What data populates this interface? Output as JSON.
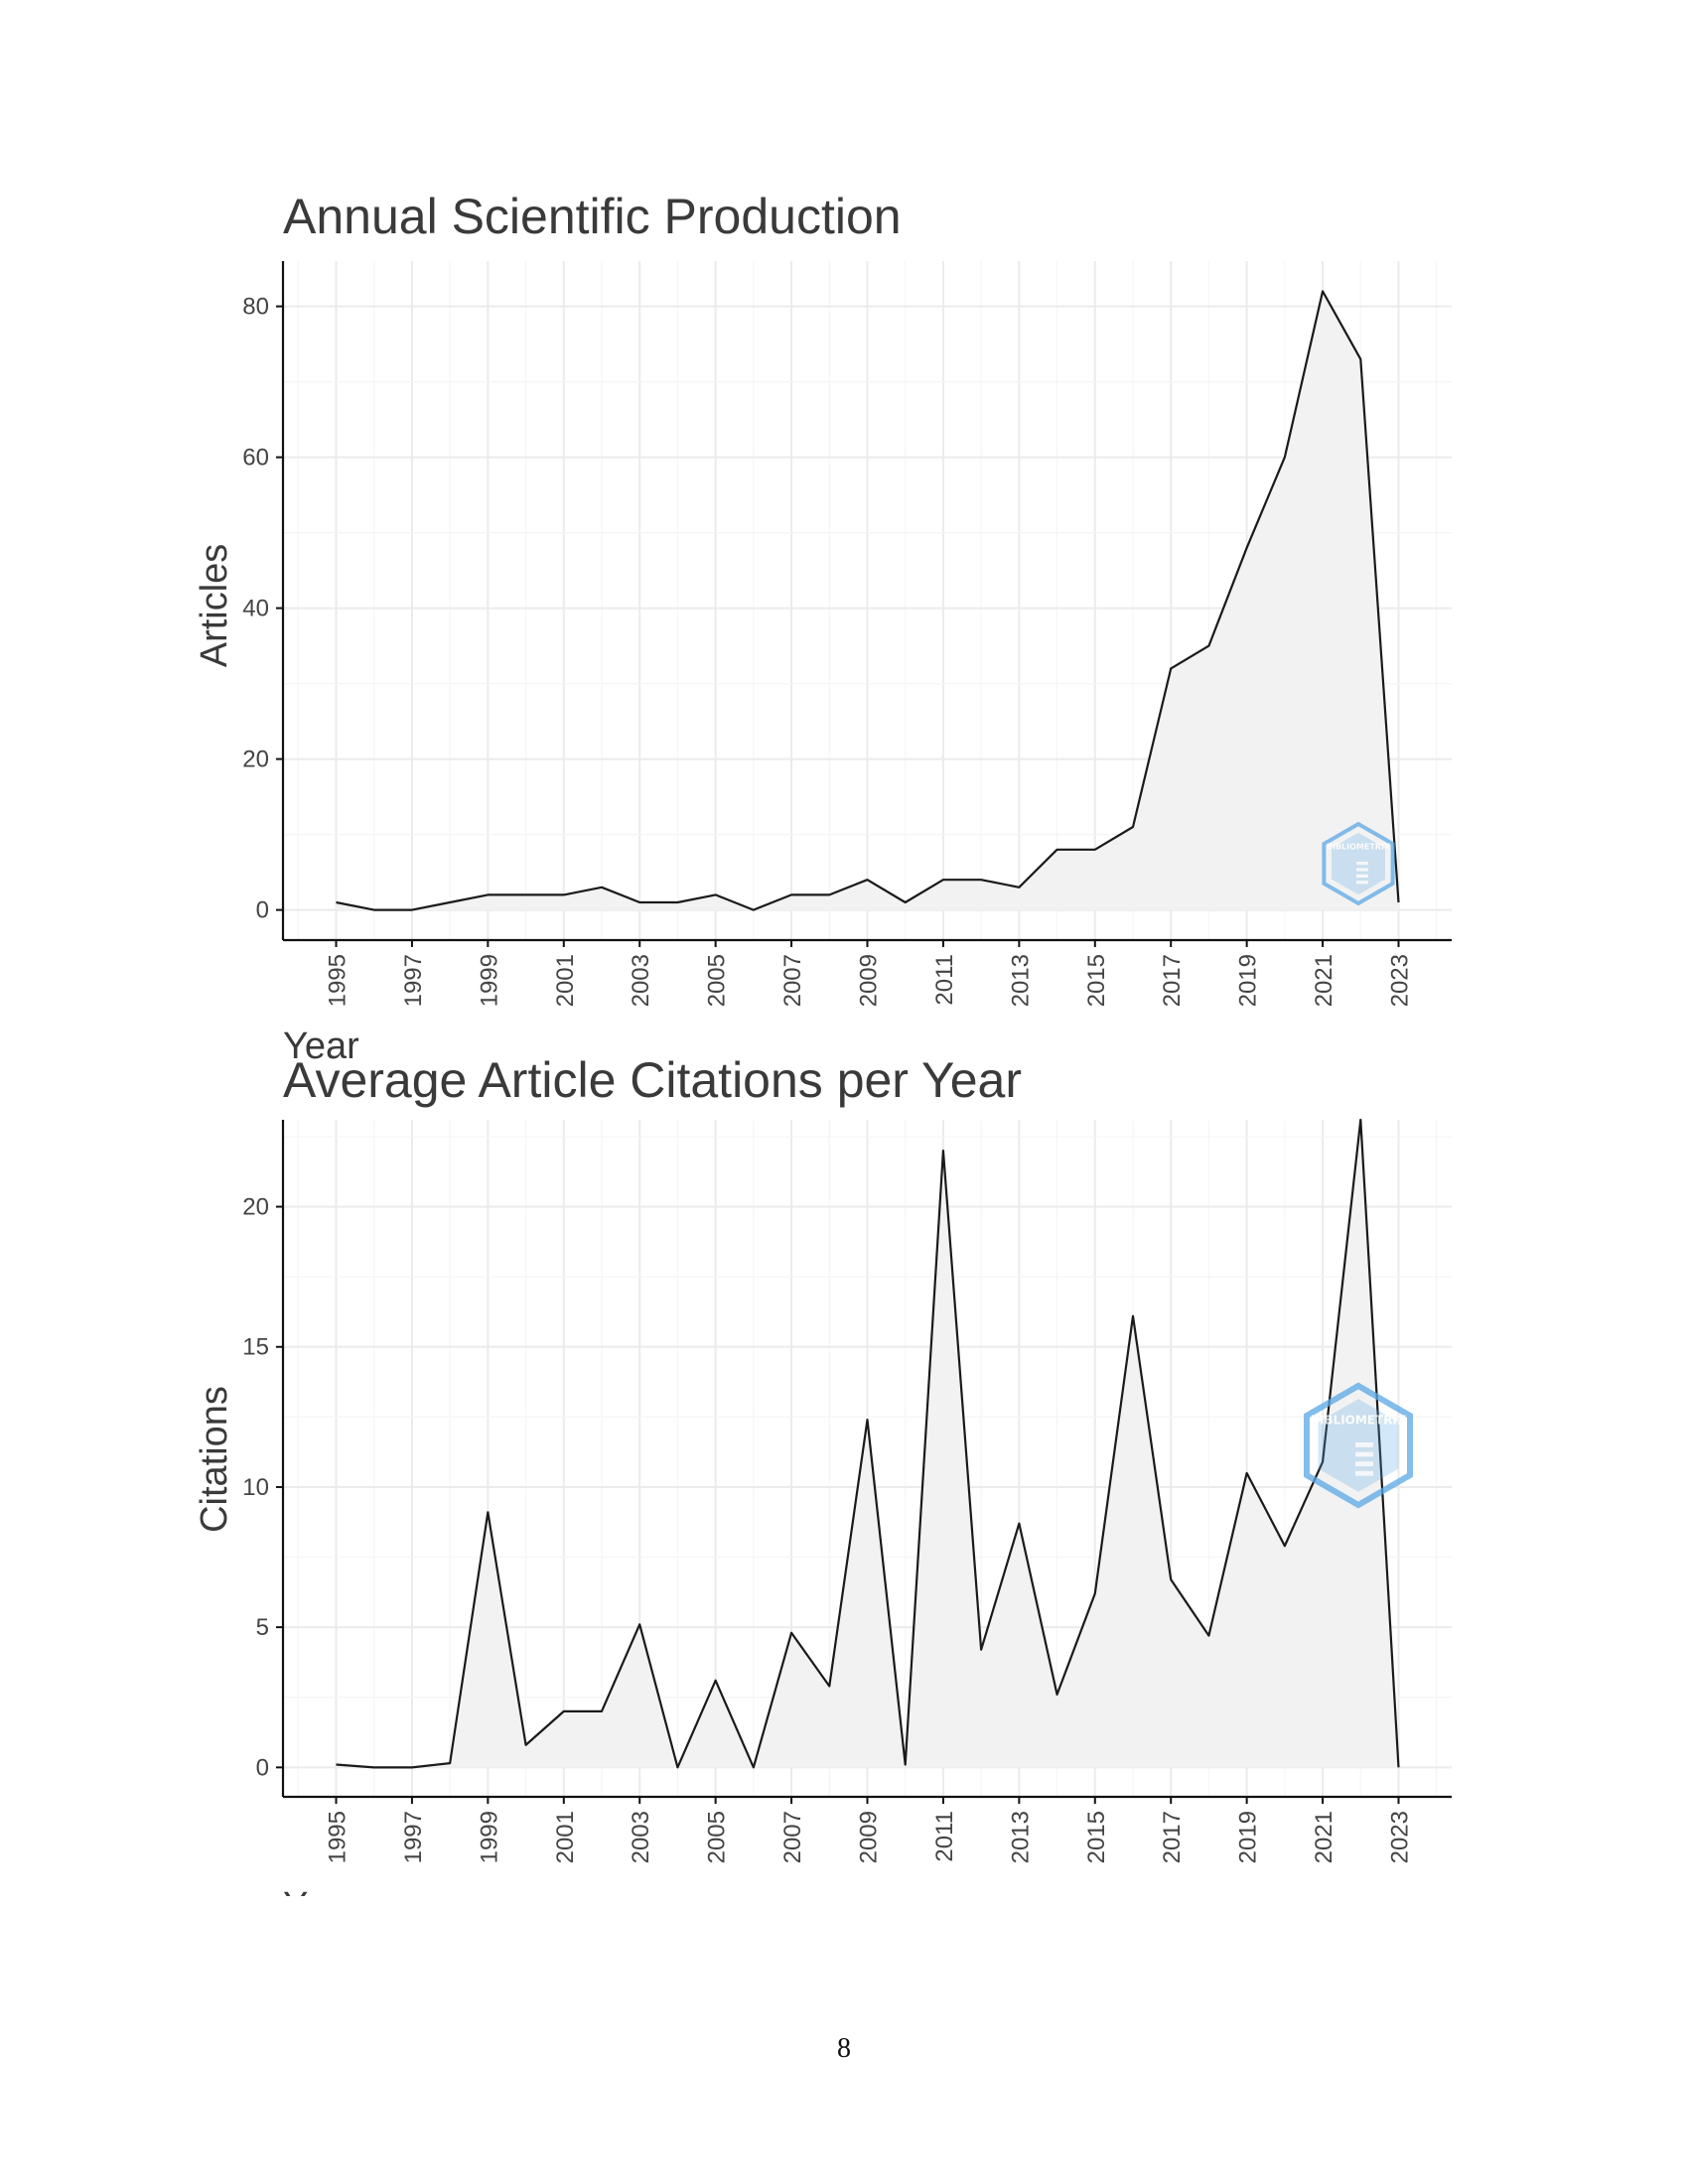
{
  "page": {
    "number": "8"
  },
  "colors": {
    "line": "#1a1a1a",
    "fill": "#f2f2f2",
    "grid_major": "#ebebeb",
    "grid_minor": "#f5f5f5",
    "axis": "#111111",
    "watermark": "#5aa8e6"
  },
  "watermark": {
    "text": "BIBLIOMETRIX",
    "icon": "bibliometrix-hexagon-logo"
  },
  "chart_data": [
    {
      "type": "area",
      "title": "Annual Scientific Production",
      "xlabel": "Year",
      "ylabel": "Articles",
      "x": [
        1995,
        1996,
        1997,
        1998,
        1999,
        2000,
        2001,
        2002,
        2003,
        2004,
        2005,
        2006,
        2007,
        2008,
        2009,
        2010,
        2011,
        2012,
        2013,
        2014,
        2015,
        2016,
        2017,
        2018,
        2019,
        2020,
        2021,
        2022,
        2023
      ],
      "values": [
        1,
        0,
        0,
        1,
        2,
        2,
        2,
        3,
        1,
        1,
        2,
        0,
        2,
        2,
        4,
        1,
        4,
        4,
        3,
        8,
        8,
        11,
        32,
        35,
        48,
        60,
        82,
        73,
        1
      ],
      "xticks": [
        "1995",
        "1997",
        "1999",
        "2001",
        "2003",
        "2005",
        "2007",
        "2009",
        "2011",
        "2013",
        "2015",
        "2017",
        "2019",
        "2021",
        "2023"
      ],
      "yticks": [
        "0",
        "20",
        "40",
        "60",
        "80"
      ],
      "xlim": [
        1993.6,
        2024.4
      ],
      "ylim": [
        -4,
        86
      ],
      "grid": true,
      "legend": "none"
    },
    {
      "type": "area",
      "title": "Average Article Citations per Year",
      "xlabel": "Year",
      "ylabel": "Citations",
      "x": [
        1995,
        1996,
        1997,
        1998,
        1999,
        2000,
        2001,
        2002,
        2003,
        2004,
        2005,
        2006,
        2007,
        2008,
        2009,
        2010,
        2011,
        2012,
        2013,
        2014,
        2015,
        2016,
        2017,
        2018,
        2019,
        2020,
        2021,
        2022,
        2023
      ],
      "values": [
        0.1,
        0,
        0,
        0.15,
        9.1,
        0.8,
        2,
        2,
        5.1,
        0,
        3.1,
        0,
        4.8,
        2.9,
        12.4,
        0.1,
        22,
        4.2,
        8.7,
        2.6,
        6.2,
        16.1,
        6.7,
        4.7,
        10.5,
        7.9,
        10.9,
        23.1,
        0
      ],
      "xticks": [
        "1995",
        "1997",
        "1999",
        "2001",
        "2003",
        "2005",
        "2007",
        "2009",
        "2011",
        "2013",
        "2015",
        "2017",
        "2019",
        "2021",
        "2023"
      ],
      "yticks": [
        "0",
        "5",
        "10",
        "15",
        "20"
      ],
      "xlim": [
        1993.6,
        2024.4
      ],
      "ylim": [
        -1.05,
        23.1
      ],
      "grid": true,
      "legend": "none"
    }
  ]
}
